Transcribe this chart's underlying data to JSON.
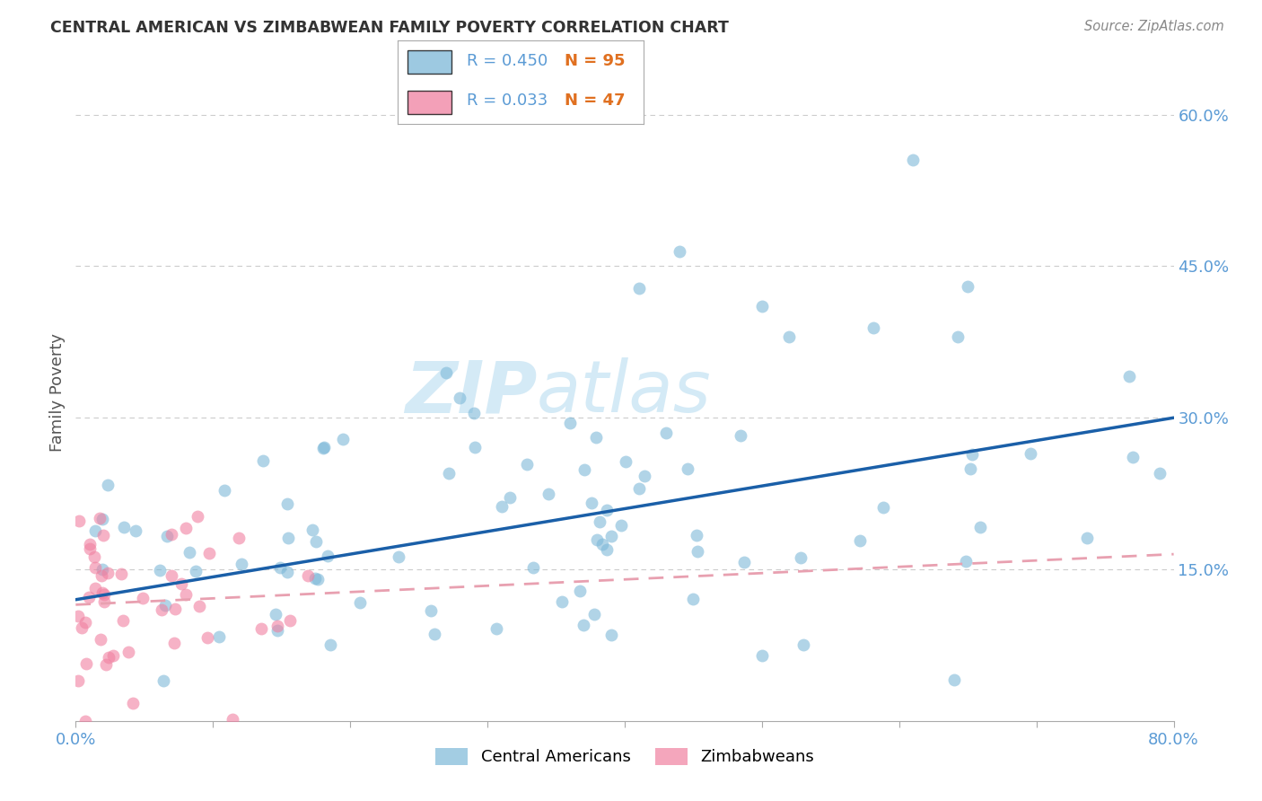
{
  "title": "CENTRAL AMERICAN VS ZIMBABWEAN FAMILY POVERTY CORRELATION CHART",
  "source": "Source: ZipAtlas.com",
  "ylabel": "Family Poverty",
  "xlim": [
    0.0,
    0.8
  ],
  "ylim": [
    0.0,
    0.65
  ],
  "background_color": "#ffffff",
  "central_american_color": "#7db8d8",
  "zimbabwean_color": "#f080a0",
  "trend_ca_color": "#1a5fa8",
  "trend_zim_color": "#e8a0b0",
  "R_ca": 0.45,
  "N_ca": 95,
  "R_zim": 0.033,
  "N_zim": 47,
  "ca_trend_x0": 0.0,
  "ca_trend_y0": 0.12,
  "ca_trend_x1": 0.8,
  "ca_trend_y1": 0.3,
  "zim_trend_x0": 0.0,
  "zim_trend_y0": 0.115,
  "zim_trend_x1": 0.8,
  "zim_trend_y1": 0.165,
  "tick_color": "#5b9bd5",
  "grid_color": "#cccccc",
  "title_color": "#333333",
  "source_color": "#888888",
  "ylabel_color": "#555555",
  "legend_R_color": "#5b9bd5",
  "legend_N_color": "#e07020",
  "watermark_color": "#d0e8f5",
  "legend_border_color": "#aaaaaa"
}
